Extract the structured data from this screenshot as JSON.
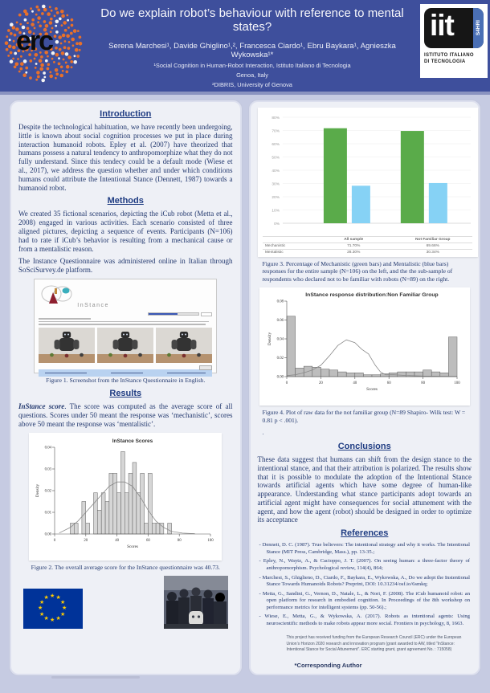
{
  "colors": {
    "header_bg": "#3e4f9c",
    "poster_bg": "#c6cbe2",
    "panel_bg": "#eef0f6",
    "mechanistic_green": "#5aab4a",
    "mentalistic_blue": "#86d2f5",
    "eu_blue": "#003399",
    "star_yellow": "#ffcc00",
    "text_navy": "#22386e"
  },
  "header": {
    "title": "Do we explain robot’s behaviour with reference to mental states?",
    "authors": "Serena Marchesi¹, Davide Ghiglino¹,², Francesca Ciardo¹, Ebru Baykara¹, Agnieszka Wykowska¹*",
    "affiliation1": "¹Social Cognition in Human-Robot Interaction, Istituto Italiano di Tecnologia",
    "affiliation2": "Genoa, Italy",
    "affiliation3": "²DIBRIS, University of Genova",
    "erc_logo_text": "erc",
    "iit_logo_text": "iit",
    "iit_side_label": "S4HRI",
    "iit_subtext1": "ISTITUTO ITALIANO",
    "iit_subtext2": "DI TECNOLOGIA"
  },
  "left": {
    "intro_heading": "Introduction",
    "intro_text": "Despite the technological habituation, we have recently been undergoing, little is known about social cognition processes we put in place during interaction humanoid robots. Epley et al. (2007) have theorized that humans possess a natural tendency to anthropomorphize what they do not fully understand. Since this tendecy could be a default mode (Wiese et al., 2017), we address the question whether and under which conditions humans could attribute the Intentional Stance (Dennett, 1987) towards a humanoid robot.",
    "methods_heading": "Methods",
    "methods_p1": "We created 35 fictional scenarios, depicting the iCub robot (Metta et al., 2008) engaged in various activities. Each scenario consisted of three aligned pictures, depicting a sequence of events. Participants (N=106) had to rate if iCub’s behavior is resulting from a mechanical cause or from a mentalistic reason.",
    "methods_p2": "The Instance Questionnaire was administered online in Italian through SoSciSurvey.de platform.",
    "figure1_caption": "Figure 1. Screenshot from the InStance Questionnaire in English.",
    "results_heading": "Results",
    "results_lead": "InStance score",
    "results_text": ". The score was computed as the average score of all questions. Scores under 50 meant the response was ‘mechanistic’, scores above 50 meant the response was ‘mentalistic’.",
    "figure2_caption": "Figure 2. The overall average score for the InStance questionnaire was 40.73."
  },
  "right": {
    "figure3_caption": "Figure 3. Percentage of Mechanistic (green bars) and Mentalistic (blue bars) responses for the entire sample (N=106) on the left,  and the the sub-sample of respondents who declared not to be familiar with robots (N=89) on the right.",
    "figure4_caption": "Figure 4. Plot of raw data for the not familiar group (N=89 Shapiro- Wilk test: W = 0.81 p < .001).",
    "figure4_caption_dot": ".",
    "conclusions_heading": "Conclusions",
    "conclusions_text": "These data suggest that humans can shift from the design stance to the intentional stance, and that their attribution is polarized. The results show that it is possible to modulate the adoption of the Intentional Stance towards artificial agents which have some degree of human-like appearance. Understanding what stance participants adopt towards an artificial agent might have consequences for social attunement with the agent, and how the agent (robot) should be designed in order to optimize its acceptance",
    "references_heading": "References",
    "references": [
      "Dennett, D. C. (1987). True believers: The intentional strategy and why it works. The Intentional Stance (MIT Press, Cambridge, Mass.), pp. 13-35.;",
      "Epley, N., Waytz, A., & Cacioppo, J. T. (2007). On seeing human: a three-factor theory of anthropomorphism. Psychological review, 114(4), 864;",
      "Marchesi, S., Ghiglieno, D., Ciardo, F., Baykara, E., Wykowska, A., Do we adopt the Instentional Stance Towards Humanoids Robots? Preprint, DOI: 10.31234/osf.io/6smkq;",
      "Metta, G., Sandini, G., Vernon, D., Natale, L., & Nori, F. (2008). The iCub humanoid robot: an open platform for research in embodied cognition. In Proceedings of the 8th workshop on performance metrics for intelligent systems (pp. 50-56).;",
      "Wiese, E., Metta, G., & Wykowska, A. (2017). Robots as intentional agents: Using neuroscientific methods to make robots appear more social. Frontiers in psychology, 8, 1663."
    ],
    "funding_text": "This project has received funding from the European Research Council (ERC) under the European Union’s Horizon 2020 research and innovation program (grant awarded to AW, titled \"InStance: Intentional Stance for Social Attunement\". ERC starting grant, grant agreement No. : 715058)",
    "corresponding": "*Corresponding Author"
  },
  "figure1": {
    "logo_text": "InStance"
  },
  "chart_data": [
    {
      "id": "figure3",
      "type": "bar",
      "title": "",
      "categories": [
        "All sample",
        "Not Familiar Group"
      ],
      "series": [
        {
          "name": "Mechanistic",
          "color": "#5aab4a",
          "values": [
            71.7,
            69.66
          ]
        },
        {
          "name": "Mentalistic",
          "color": "#86d2f5",
          "values": [
            28.3,
            30.34
          ]
        }
      ],
      "value_labels": [
        [
          "71.70%",
          "69.66%"
        ],
        [
          "28.30%",
          "30.34%"
        ]
      ],
      "ylim": [
        0,
        80
      ],
      "ytick_step": 10,
      "ytick_suffix": "%",
      "grid": true,
      "legend_position": "table-below"
    },
    {
      "id": "figure2",
      "type": "histogram",
      "title": "InStance Scores",
      "xlabel": "Scores",
      "ylabel": "Density",
      "xlim": [
        0,
        100
      ],
      "ylim": [
        0,
        0.04
      ],
      "xticks": [
        0,
        20,
        40,
        60,
        80,
        100
      ],
      "yticks": [
        0,
        0.01,
        0.02,
        0.03,
        0.04
      ],
      "bin_width": 2.5,
      "bins": [
        [
          10,
          0.005
        ],
        [
          12.5,
          0.005
        ],
        [
          17.5,
          0.015
        ],
        [
          20,
          0.005
        ],
        [
          25,
          0.019
        ],
        [
          27.5,
          0.011
        ],
        [
          30,
          0.019
        ],
        [
          32.5,
          0.015
        ],
        [
          35,
          0.028
        ],
        [
          37.5,
          0.028
        ],
        [
          40,
          0.019
        ],
        [
          42.5,
          0.038
        ],
        [
          45,
          0.019
        ],
        [
          47.5,
          0.028
        ],
        [
          50,
          0.033
        ],
        [
          52.5,
          0.019
        ],
        [
          55,
          0.028
        ],
        [
          57.5,
          0.005
        ],
        [
          60,
          0.028
        ],
        [
          62.5,
          0.005
        ],
        [
          65,
          0.005
        ],
        [
          67.5,
          0.005
        ],
        [
          72.5,
          0.005
        ]
      ],
      "curve": [
        [
          3,
          0.0005
        ],
        [
          10,
          0.003
        ],
        [
          15,
          0.006
        ],
        [
          20,
          0.01
        ],
        [
          25,
          0.014
        ],
        [
          30,
          0.018
        ],
        [
          35,
          0.022
        ],
        [
          40,
          0.024
        ],
        [
          45,
          0.024
        ],
        [
          50,
          0.022
        ],
        [
          55,
          0.017
        ],
        [
          60,
          0.011
        ],
        [
          65,
          0.006
        ],
        [
          70,
          0.003
        ],
        [
          75,
          0.0012
        ],
        [
          82,
          0.0004
        ],
        [
          90,
          0.0001
        ]
      ]
    },
    {
      "id": "figure4",
      "type": "histogram",
      "title": "InStance response distribution:Non Familiar Group",
      "xlabel": "Scores",
      "ylabel": "Density",
      "xlim": [
        0,
        100
      ],
      "ylim": [
        0,
        0.08
      ],
      "xticks": [
        0,
        20,
        40,
        60,
        80,
        100
      ],
      "yticks": [
        0,
        0.02,
        0.04,
        0.06,
        0.08
      ],
      "bin_width": 5,
      "bins": [
        [
          0,
          0.064
        ],
        [
          5,
          0.009
        ],
        [
          10,
          0.011
        ],
        [
          15,
          0.01
        ],
        [
          20,
          0.008
        ],
        [
          25,
          0.007
        ],
        [
          30,
          0.005
        ],
        [
          35,
          0.004
        ],
        [
          40,
          0.004
        ],
        [
          45,
          0.002
        ],
        [
          50,
          0.002
        ],
        [
          55,
          0.003
        ],
        [
          60,
          0.004
        ],
        [
          65,
          0.005
        ],
        [
          70,
          0.005
        ],
        [
          75,
          0.005
        ],
        [
          80,
          0.007
        ],
        [
          85,
          0.005
        ],
        [
          90,
          0.004
        ],
        [
          95,
          0.042
        ]
      ],
      "curve": [
        [
          0,
          0.001
        ],
        [
          5,
          0.002
        ],
        [
          10,
          0.004
        ],
        [
          15,
          0.007
        ],
        [
          20,
          0.012
        ],
        [
          25,
          0.022
        ],
        [
          30,
          0.033
        ],
        [
          35,
          0.039
        ],
        [
          40,
          0.036
        ],
        [
          44,
          0.029
        ],
        [
          48,
          0.024
        ],
        [
          52,
          0.012
        ],
        [
          55,
          0.005
        ],
        [
          58,
          0.002
        ],
        [
          63,
          0.002
        ],
        [
          70,
          0.0012
        ],
        [
          80,
          0.0006
        ],
        [
          90,
          0.0004
        ],
        [
          100,
          0.0002
        ]
      ]
    }
  ]
}
